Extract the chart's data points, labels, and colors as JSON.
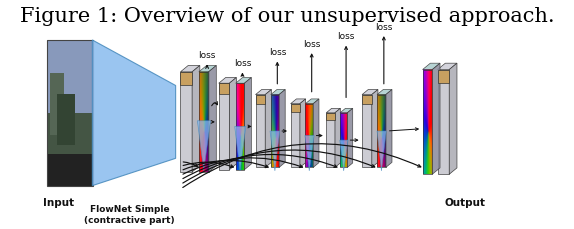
{
  "title": "Figure 1: Overview of our unsupervised approach.",
  "title_fontsize": 15,
  "title_color": "#000000",
  "background_color": "#ffffff",
  "input_label": "Input",
  "flownet_label": "FlowNet Simple\n(contractive part)",
  "output_label": "Output",
  "loss_label": "loss",
  "arrow_color": "#111111",
  "blue_cone_color": "#88bbee",
  "blue_cone_edge": "#4488bb",
  "gray_face": "#c8c8d0",
  "gray_top": "#d0d0d8",
  "gray_side": "#b0b0b8",
  "tan_color": "#c8a060",
  "flow_top": "#aacccc",
  "flow_side": "#888899"
}
